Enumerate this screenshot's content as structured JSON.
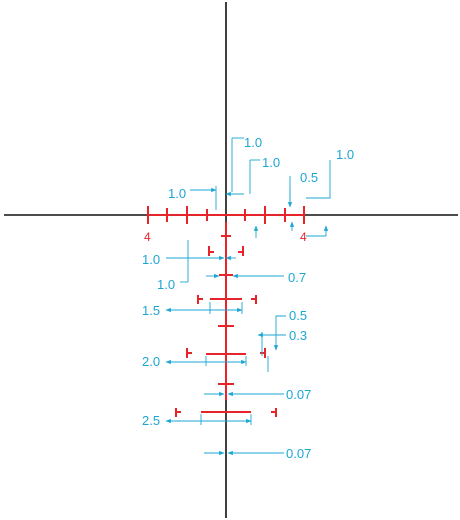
{
  "colors": {
    "crosshair": "#111111",
    "reticle_marks": "#e8242b",
    "dimensions": "#1ba6d3"
  },
  "labels": {
    "left_4": "4",
    "right_4": "4",
    "h_dim_1": "1.0",
    "h_dim_2": "1.0",
    "h_dim_3": "1.0",
    "h_dim_4": "1.0",
    "h_dim_05": "0.5",
    "v_dim_1": "1.0",
    "v_dim_2": "1.0",
    "dot_07": "0.7",
    "bar_15": "1.5",
    "dim_05": "0.5",
    "dim_03": "0.3",
    "bar_20": "2.0",
    "gap_007_a": "0.07",
    "bar_25": "2.5",
    "gap_007_b": "0.07"
  }
}
